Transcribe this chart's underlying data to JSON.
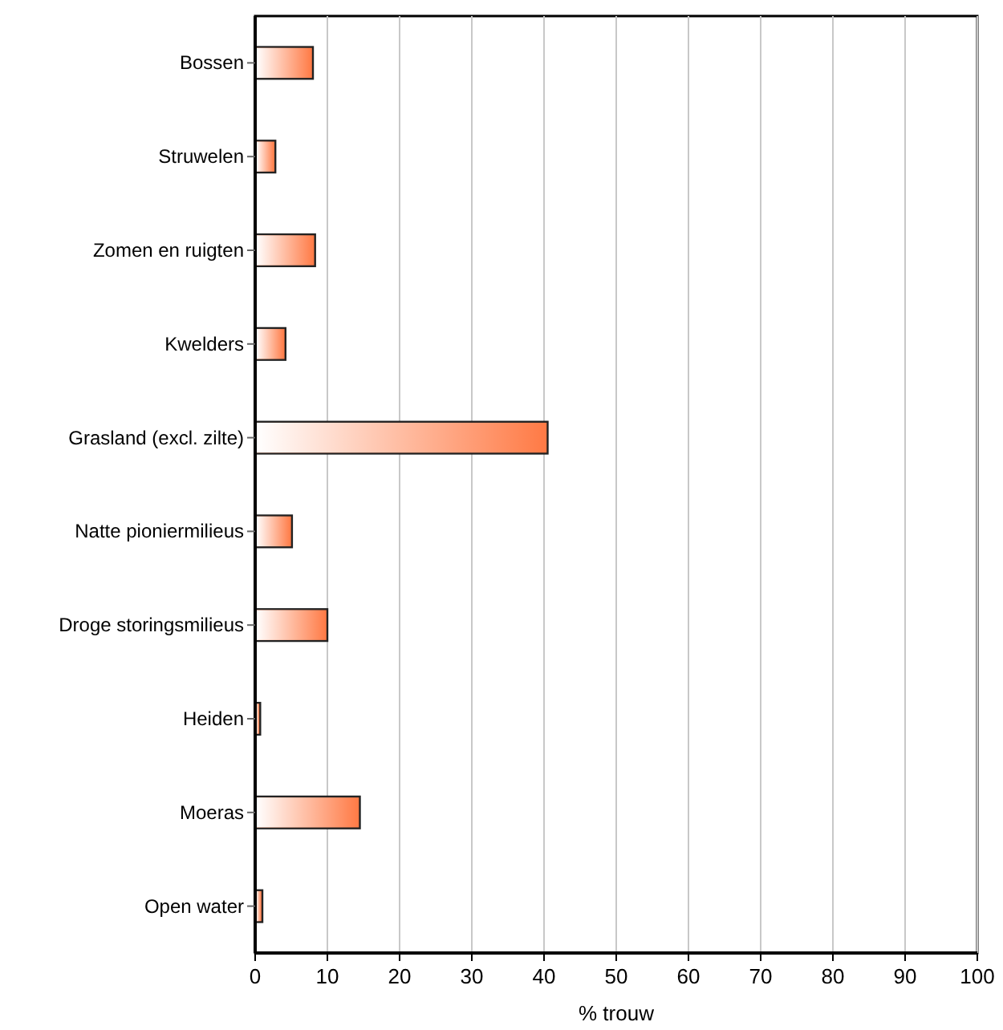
{
  "chart_data": {
    "type": "bar",
    "orientation": "horizontal",
    "xlabel": "% trouw",
    "categories": [
      "Bossen",
      "Struwelen",
      "Zomen en ruigten",
      "Kwelders",
      "Grasland (excl. zilte)",
      "Natte pioniermilieus",
      "Droge storingsmilieus",
      "Heiden",
      "Moeras",
      "Open water"
    ],
    "values": [
      8.0,
      2.8,
      8.3,
      4.2,
      40.5,
      5.1,
      10.0,
      0.7,
      14.5,
      1.0
    ],
    "color": "#ff7a45",
    "xlim": [
      0,
      100
    ],
    "xticks": [
      0,
      10,
      20,
      30,
      40,
      50,
      60,
      70,
      80,
      90,
      100
    ],
    "grid": "x"
  }
}
